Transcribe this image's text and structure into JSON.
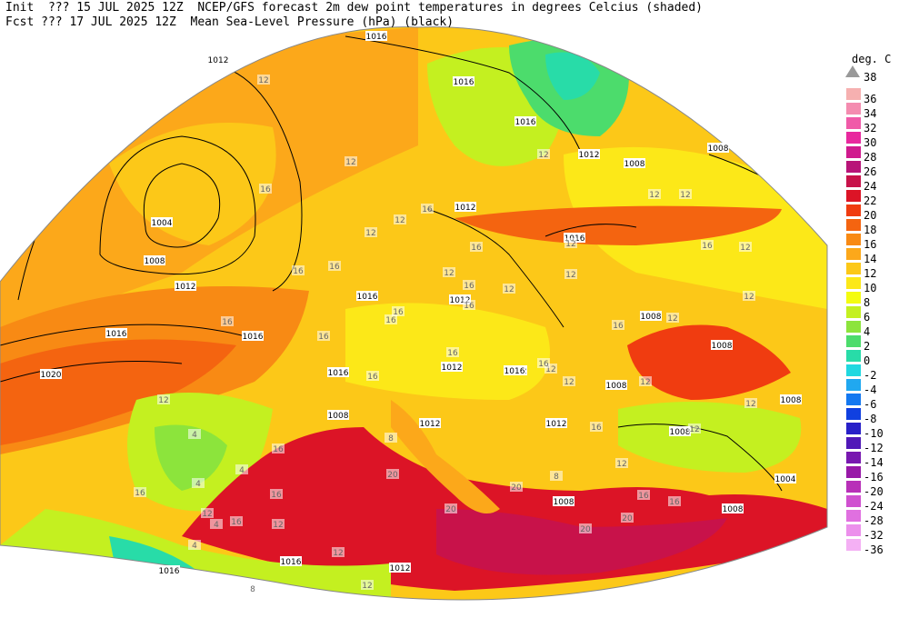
{
  "header": {
    "line1": "Init  ??? 15 JUL 2025 12Z  NCEP/GFS forecast 2m dew point temperatures in degrees Celcius (shaded)",
    "line2": "Fcst ??? 17 JUL 2025 12Z  Mean Sea-Level Pressure (hPa) (black)"
  },
  "legend": {
    "unit": "deg. C",
    "top_label": "38",
    "entries": [
      {
        "label": "36",
        "color": "#f6b0b0"
      },
      {
        "label": "34",
        "color": "#f48cb0"
      },
      {
        "label": "32",
        "color": "#f05aa8"
      },
      {
        "label": "30",
        "color": "#e8289e"
      },
      {
        "label": "28",
        "color": "#d01a8e"
      },
      {
        "label": "26",
        "color": "#b81478"
      },
      {
        "label": "24",
        "color": "#c8124a"
      },
      {
        "label": "22",
        "color": "#dc1426"
      },
      {
        "label": "20",
        "color": "#f03c10"
      },
      {
        "label": "18",
        "color": "#f46410"
      },
      {
        "label": "16",
        "color": "#f88a14"
      },
      {
        "label": "14",
        "color": "#fca81a"
      },
      {
        "label": "12",
        "color": "#fcc818"
      },
      {
        "label": "10",
        "color": "#fce818"
      },
      {
        "label": "8",
        "color": "#f4fc10"
      },
      {
        "label": "6",
        "color": "#c4f020"
      },
      {
        "label": "4",
        "color": "#8ce43c"
      },
      {
        "label": "2",
        "color": "#4cdc6c"
      },
      {
        "label": "0",
        "color": "#28dca8"
      },
      {
        "label": "-2",
        "color": "#20d8e0"
      },
      {
        "label": "-4",
        "color": "#20a8f0"
      },
      {
        "label": "-6",
        "color": "#1478f0"
      },
      {
        "label": "-8",
        "color": "#1040e0"
      },
      {
        "label": "-10",
        "color": "#2820c8"
      },
      {
        "label": "-12",
        "color": "#5018b8"
      },
      {
        "label": "-14",
        "color": "#7818b0"
      },
      {
        "label": "-16",
        "color": "#9818a8"
      },
      {
        "label": "-20",
        "color": "#b830b8"
      },
      {
        "label": "-24",
        "color": "#d050d0"
      },
      {
        "label": "-28",
        "color": "#e070e0"
      },
      {
        "label": "-32",
        "color": "#ec90ec"
      },
      {
        "label": "-36",
        "color": "#f4b0f4"
      }
    ]
  },
  "map_labels": {
    "isobars": [
      "1016",
      "1012",
      "1016",
      "1016",
      "1012",
      "1004",
      "1008",
      "1012",
      "1016",
      "1016",
      "1020",
      "1016",
      "1016",
      "1012",
      "1012",
      "1016",
      "1012",
      "1008",
      "1008",
      "1008",
      "1012",
      "1016",
      "1012",
      "1008",
      "1008",
      "1012",
      "1008",
      "1008",
      "1004",
      "1008",
      "1016",
      "1016",
      "1012",
      "1008",
      "1008"
    ],
    "dewpoints": [
      "12",
      "16",
      "12",
      "16",
      "16",
      "16",
      "12",
      "16",
      "12",
      "16",
      "16",
      "16",
      "16",
      "12",
      "4",
      "16",
      "16",
      "16",
      "12",
      "12",
      "12",
      "12",
      "12",
      "12",
      "12",
      "16",
      "16",
      "12",
      "12",
      "4",
      "4",
      "16",
      "16",
      "20",
      "20",
      "20",
      "20",
      "16",
      "16",
      "12",
      "4",
      "4",
      "12",
      "12",
      "12",
      "8",
      "8",
      "12",
      "12",
      "12",
      "16",
      "12",
      "20",
      "16",
      "12",
      "12",
      "16",
      "16",
      "16",
      "8",
      "12"
    ]
  },
  "colors": {
    "ocean_sw": "#f46410",
    "med": "#dc1426",
    "med_deep": "#c8124a",
    "land": "#fcc818",
    "land_warm": "#f88a14",
    "cool": "#c4f020",
    "cold": "#4cdc6c",
    "isobar": "#000000"
  }
}
